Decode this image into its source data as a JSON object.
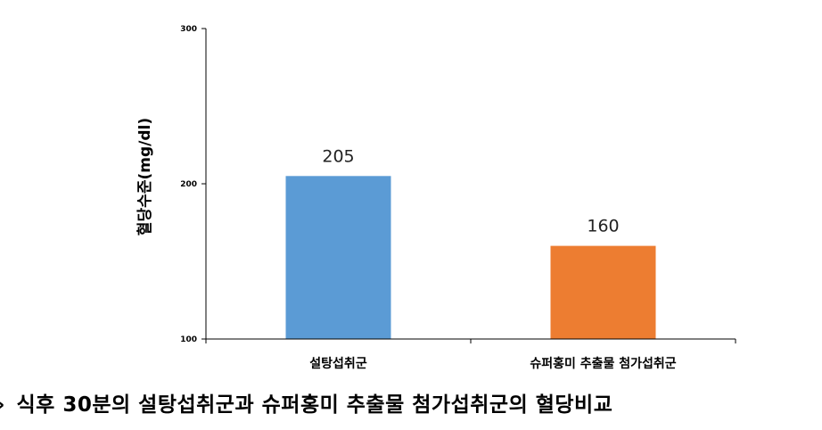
{
  "chart_data": {
    "type": "bar",
    "ylabel": "혈당수준(mg/dl)",
    "categories": [
      "설탕섭취군",
      "슈퍼홍미 추출물 첨가섭취군"
    ],
    "values": [
      205,
      160
    ],
    "value_labels": [
      "205",
      "160"
    ],
    "colors": [
      "#5B9BD5",
      "#ED7D31"
    ],
    "ylim": [
      100,
      300
    ],
    "yticks": [
      100,
      200,
      300
    ],
    "ytick_labels": [
      "100",
      "200",
      "300"
    ],
    "grid": false,
    "legend": "none"
  },
  "caption": {
    "arrow": "›",
    "text": "식후 30분의 설탕섭취군과 슈퍼홍미 추출물 첨가섭취군의 혈당비교"
  }
}
